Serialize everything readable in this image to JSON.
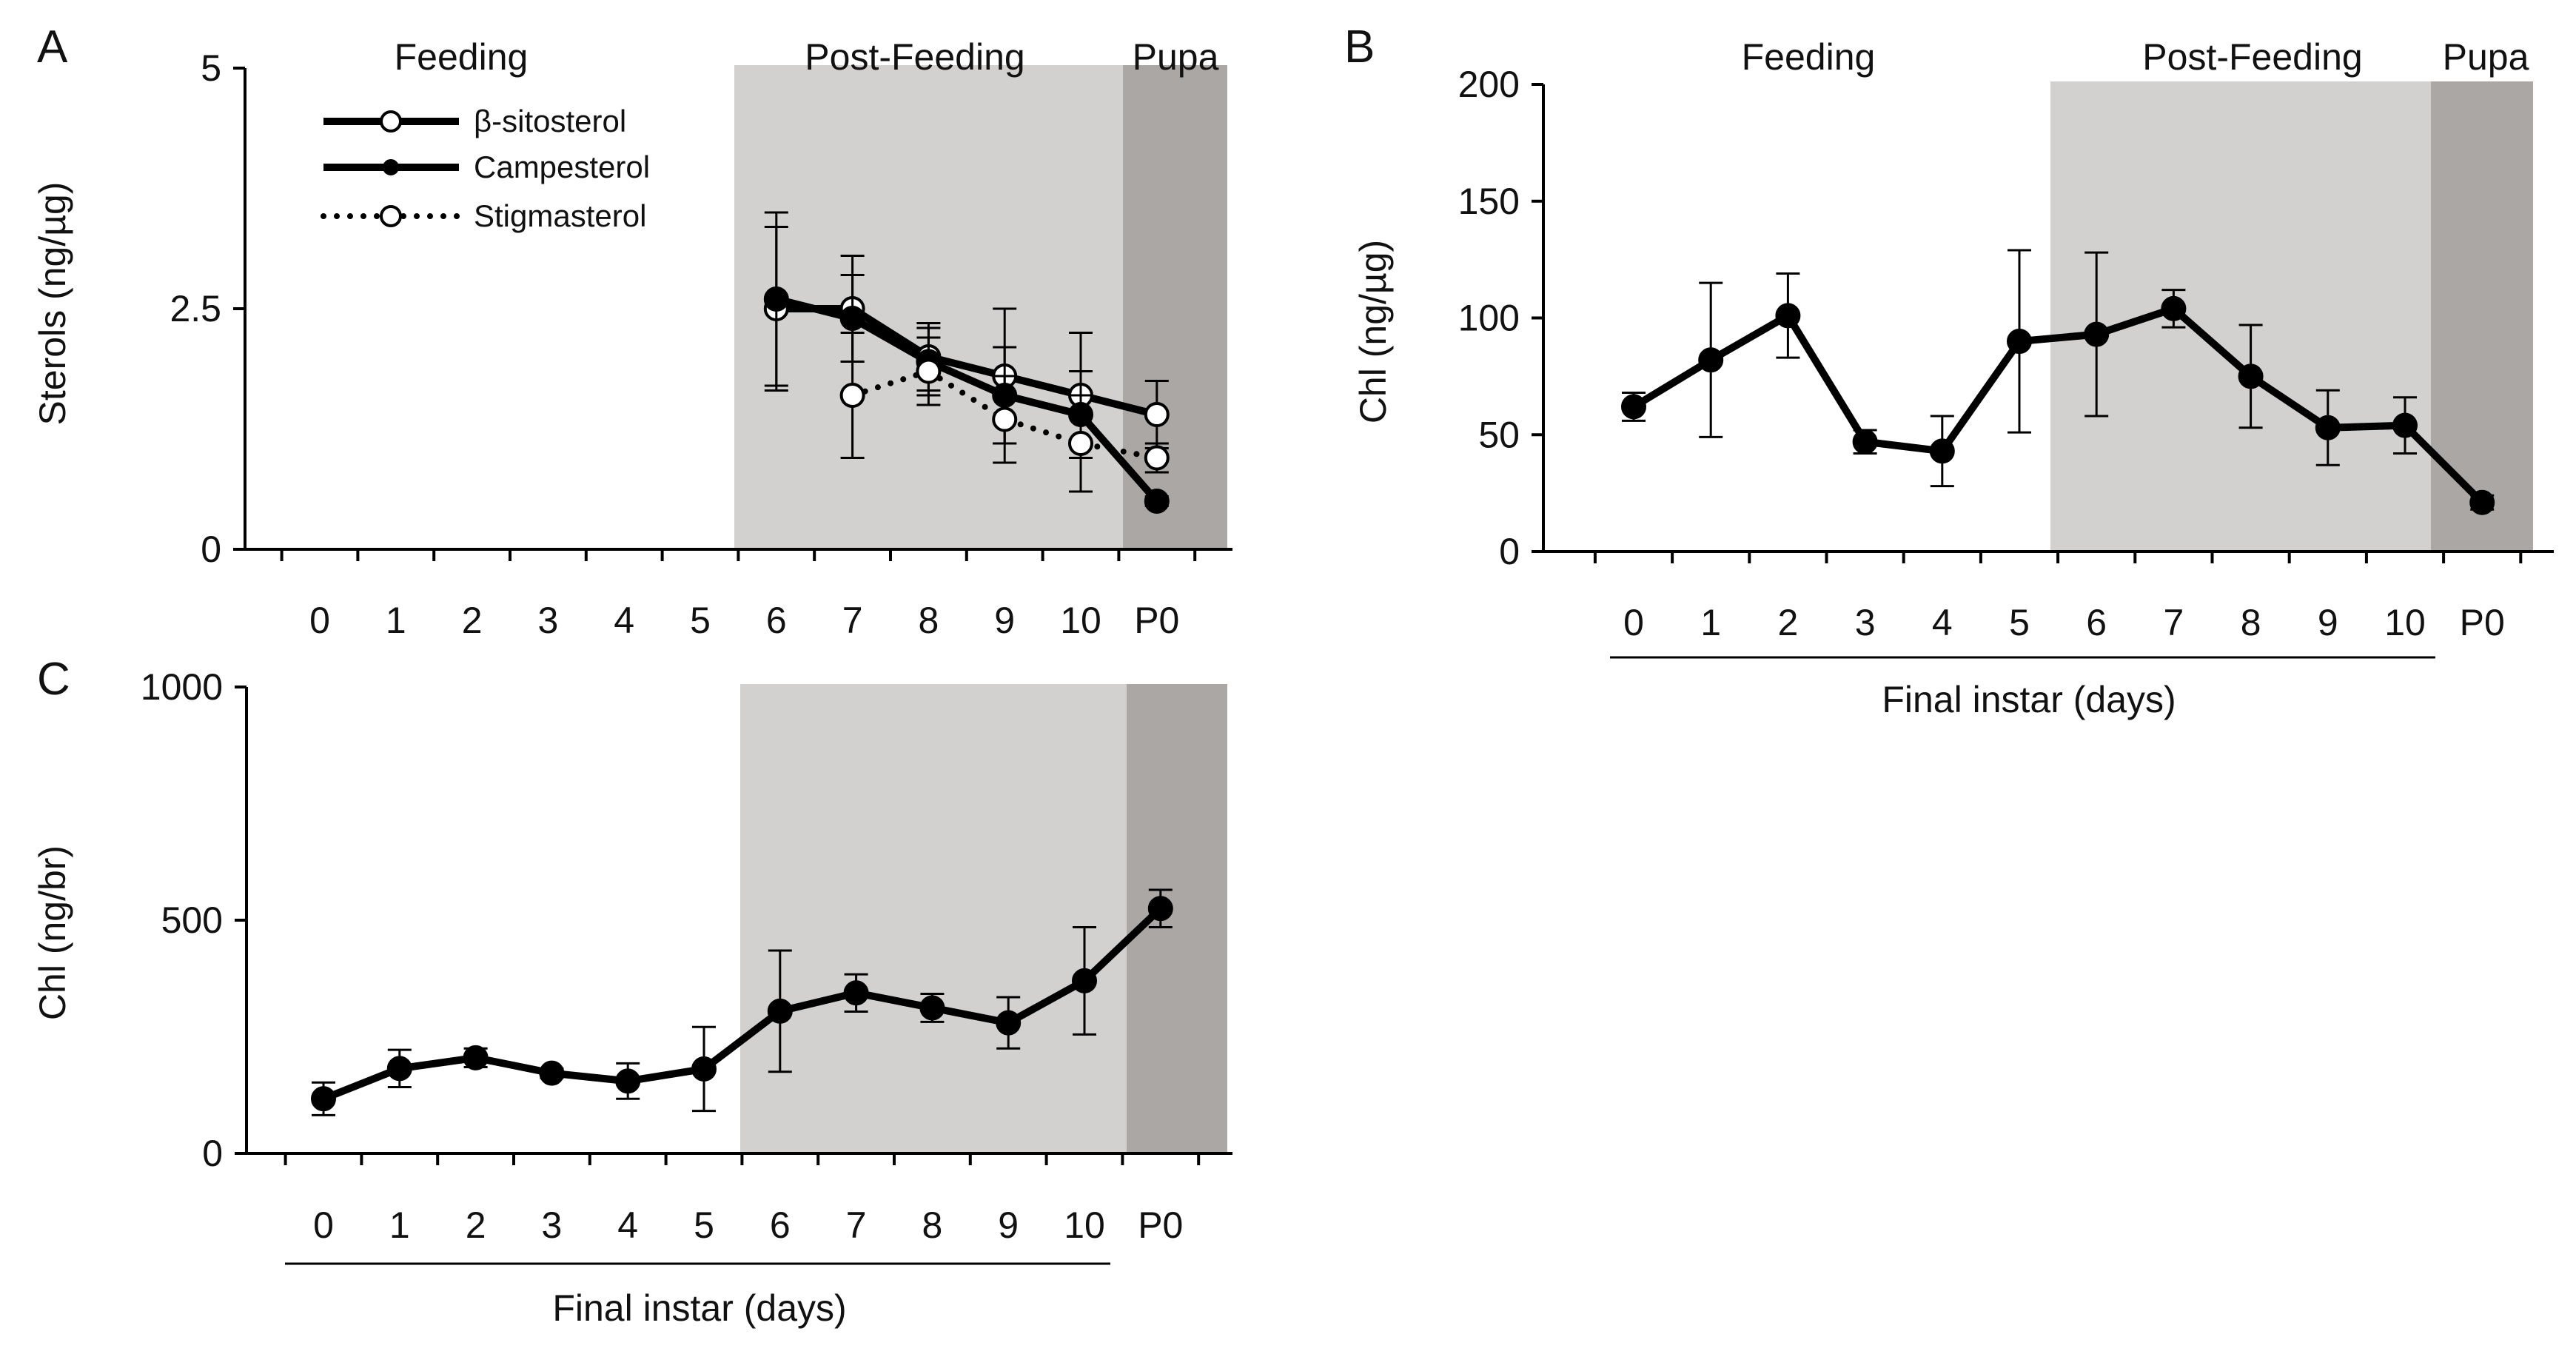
{
  "figure": {
    "phase_labels": {
      "feeding": "Feeding",
      "post_feeding": "Post-Feeding",
      "pupa": "Pupa"
    },
    "colors": {
      "post_feeding_shade": "#d3d0d0",
      "pupa_shade": "#aba7a4",
      "line": "#000000",
      "open_marker_fill": "#ffffff"
    }
  },
  "chart_data": [
    {
      "panel": "A",
      "type": "line",
      "title": "",
      "xlabel": "",
      "ylabel": "Sterols (ng/µg)",
      "categories": [
        "0",
        "1",
        "2",
        "3",
        "4",
        "5",
        "6",
        "7",
        "8",
        "9",
        "10",
        "P0"
      ],
      "ylim": [
        0,
        5
      ],
      "yticks": [
        "0",
        "2.5",
        "5"
      ],
      "ytick_values": [
        0,
        2.5,
        5
      ],
      "legend": {
        "placement": "top-left",
        "entries": [
          "β-sitosterol",
          "Campesterol",
          "Stigmasterol"
        ]
      },
      "series": [
        {
          "name": "β-sitosterol",
          "marker": "open",
          "dash": "solid",
          "values": [
            null,
            null,
            null,
            null,
            null,
            null,
            2.5,
            2.5,
            2.0,
            1.8,
            1.6,
            1.4
          ],
          "errors": [
            null,
            null,
            null,
            null,
            null,
            null,
            0.85,
            0.55,
            0.35,
            0.7,
            0.65,
            0.35
          ]
        },
        {
          "name": "Campesterol",
          "marker": "filled",
          "dash": "solid",
          "values": [
            null,
            null,
            null,
            null,
            null,
            null,
            2.6,
            2.4,
            1.95,
            1.6,
            1.4,
            0.5
          ],
          "errors": [
            null,
            null,
            null,
            null,
            null,
            null,
            0.9,
            0.45,
            0.35,
            0.5,
            0.45,
            0.05
          ]
        },
        {
          "name": "Stigmasterol",
          "marker": "open",
          "dash": "dotted",
          "values": [
            null,
            null,
            null,
            null,
            null,
            null,
            null,
            1.6,
            1.85,
            1.35,
            1.1,
            0.95
          ],
          "errors": [
            null,
            null,
            null,
            null,
            null,
            null,
            null,
            0.65,
            0.35,
            0.45,
            0.5,
            0.15
          ]
        }
      ]
    },
    {
      "panel": "B",
      "type": "line",
      "title": "",
      "xlabel": "Final instar (days)",
      "ylabel": "Chl (ng/µg)",
      "categories": [
        "0",
        "1",
        "2",
        "3",
        "4",
        "5",
        "6",
        "7",
        "8",
        "9",
        "10",
        "P0"
      ],
      "ylim": [
        0,
        200
      ],
      "yticks": [
        "0",
        "50",
        "100",
        "150",
        "200"
      ],
      "ytick_values": [
        0,
        50,
        100,
        150,
        200
      ],
      "series": [
        {
          "name": "Chl",
          "marker": "filled",
          "dash": "solid",
          "values": [
            62,
            82,
            101,
            47,
            43,
            90,
            93,
            104,
            75,
            53,
            54,
            21
          ],
          "errors": [
            6,
            33,
            18,
            5,
            15,
            39,
            35,
            8,
            22,
            16,
            12,
            3
          ]
        }
      ]
    },
    {
      "panel": "C",
      "type": "line",
      "title": "",
      "xlabel": "Final instar (days)",
      "ylabel": "Chl (ng/br)",
      "categories": [
        "0",
        "1",
        "2",
        "3",
        "4",
        "5",
        "6",
        "7",
        "8",
        "9",
        "10",
        "P0"
      ],
      "ylim": [
        0,
        1000
      ],
      "yticks": [
        "0",
        "500",
        "1000"
      ],
      "ytick_values": [
        0,
        500,
        1000
      ],
      "series": [
        {
          "name": "Chl",
          "marker": "filled",
          "dash": "solid",
          "values": [
            117,
            182,
            205,
            172,
            155,
            181,
            305,
            344,
            312,
            280,
            370,
            525
          ],
          "errors": [
            35,
            40,
            20,
            10,
            38,
            90,
            130,
            40,
            30,
            55,
            115,
            40
          ]
        }
      ]
    }
  ]
}
